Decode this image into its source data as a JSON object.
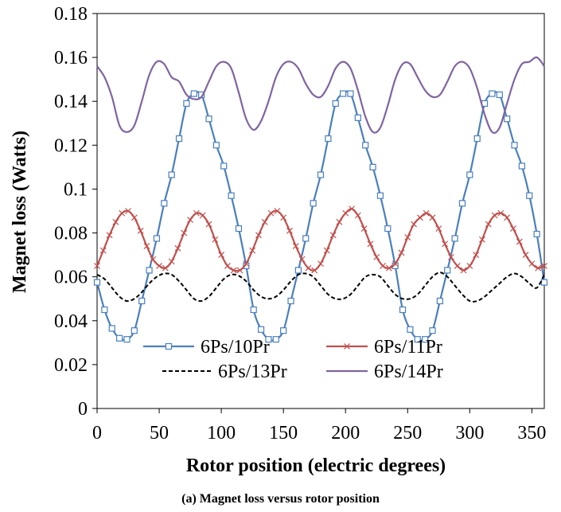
{
  "caption": "(a) Magnet loss versus rotor position",
  "chart_data": {
    "type": "line",
    "title": "",
    "xlabel": "Rotor position (electric degrees)",
    "ylabel": "Magnet loss (Watts)",
    "xlim": [
      0,
      360
    ],
    "ylim": [
      0,
      0.18
    ],
    "xticks": [
      "0",
      "50",
      "100",
      "150",
      "200",
      "250",
      "300",
      "350"
    ],
    "yticks": [
      "0",
      "0.02",
      "0.04",
      "0.06",
      "0.08",
      "0.1",
      "0.12",
      "0.14",
      "0.16",
      "0.18"
    ],
    "grid": false,
    "legend_position": "bottom-inside",
    "series": [
      {
        "name": "6Ps/10Pr",
        "color": "#4a7fbd",
        "marker": "square",
        "dash": "solid",
        "x": [
          0,
          6,
          12,
          18,
          24,
          30,
          36,
          42,
          48,
          54,
          60,
          66,
          72,
          78,
          84,
          90,
          96,
          102,
          108,
          114,
          120,
          126,
          132,
          138,
          144,
          150,
          156,
          162,
          168,
          174,
          180,
          186,
          192,
          198,
          204,
          210,
          216,
          222,
          228,
          234,
          240,
          246,
          252,
          258,
          264,
          270,
          276,
          282,
          288,
          294,
          300,
          306,
          312,
          318,
          324,
          330,
          336,
          342,
          348,
          354,
          360
        ],
        "y": [
          0.0575,
          0.045,
          0.0365,
          0.032,
          0.0315,
          0.0355,
          0.049,
          0.063,
          0.0775,
          0.0935,
          0.1065,
          0.123,
          0.139,
          0.1435,
          0.143,
          0.132,
          0.12,
          0.1105,
          0.097,
          0.082,
          0.065,
          0.045,
          0.036,
          0.0315,
          0.0315,
          0.0355,
          0.049,
          0.063,
          0.0775,
          0.0935,
          0.1065,
          0.123,
          0.139,
          0.1435,
          0.1435,
          0.1325,
          0.12,
          0.11,
          0.097,
          0.082,
          0.065,
          0.045,
          0.036,
          0.0315,
          0.0315,
          0.0355,
          0.049,
          0.063,
          0.0775,
          0.0935,
          0.1065,
          0.123,
          0.139,
          0.1435,
          0.143,
          0.132,
          0.12,
          0.1105,
          0.097,
          0.0795,
          0.0575
        ]
      },
      {
        "name": "6Ps/11Pr",
        "color": "#c0504d",
        "marker": "x",
        "dash": "solid",
        "x": [
          0,
          5,
          10,
          15,
          20,
          25,
          30,
          35,
          40,
          45,
          50,
          55,
          60,
          65,
          70,
          75,
          80,
          85,
          90,
          95,
          100,
          105,
          110,
          115,
          120,
          125,
          130,
          135,
          140,
          145,
          150,
          155,
          160,
          165,
          170,
          175,
          180,
          185,
          190,
          195,
          200,
          205,
          210,
          215,
          220,
          225,
          230,
          235,
          240,
          245,
          250,
          255,
          260,
          265,
          270,
          275,
          280,
          285,
          290,
          295,
          300,
          305,
          310,
          315,
          320,
          325,
          330,
          335,
          340,
          345,
          350,
          355,
          360
        ],
        "y": [
          0.065,
          0.072,
          0.079,
          0.085,
          0.089,
          0.09,
          0.087,
          0.081,
          0.074,
          0.068,
          0.065,
          0.064,
          0.067,
          0.073,
          0.08,
          0.086,
          0.089,
          0.088,
          0.084,
          0.077,
          0.07,
          0.065,
          0.063,
          0.063,
          0.066,
          0.072,
          0.079,
          0.085,
          0.089,
          0.09,
          0.087,
          0.081,
          0.074,
          0.068,
          0.064,
          0.063,
          0.066,
          0.072,
          0.079,
          0.085,
          0.089,
          0.091,
          0.088,
          0.082,
          0.075,
          0.069,
          0.065,
          0.064,
          0.066,
          0.071,
          0.078,
          0.084,
          0.087,
          0.089,
          0.087,
          0.082,
          0.075,
          0.069,
          0.065,
          0.063,
          0.065,
          0.07,
          0.077,
          0.084,
          0.088,
          0.089,
          0.087,
          0.082,
          0.076,
          0.07,
          0.066,
          0.064,
          0.065
        ]
      },
      {
        "name": "6Ps/13Pr",
        "color": "#000000",
        "marker": "none",
        "dash": "dash",
        "x": [
          0,
          6,
          12,
          18,
          24,
          30,
          36,
          42,
          48,
          54,
          60,
          66,
          72,
          78,
          84,
          90,
          96,
          102,
          108,
          114,
          120,
          126,
          132,
          138,
          144,
          150,
          156,
          162,
          168,
          174,
          180,
          186,
          192,
          198,
          204,
          210,
          216,
          222,
          228,
          234,
          240,
          246,
          252,
          258,
          264,
          270,
          276,
          282,
          288,
          294,
          300,
          306,
          312,
          318,
          324,
          330,
          336,
          342,
          348,
          354,
          360
        ],
        "y": [
          0.061,
          0.059,
          0.055,
          0.051,
          0.049,
          0.05,
          0.053,
          0.057,
          0.06,
          0.0615,
          0.061,
          0.058,
          0.054,
          0.05,
          0.049,
          0.051,
          0.055,
          0.059,
          0.061,
          0.0605,
          0.058,
          0.054,
          0.051,
          0.05,
          0.051,
          0.054,
          0.058,
          0.061,
          0.0615,
          0.06,
          0.056,
          0.052,
          0.05,
          0.05,
          0.052,
          0.056,
          0.06,
          0.061,
          0.06,
          0.056,
          0.052,
          0.05,
          0.05,
          0.052,
          0.056,
          0.06,
          0.062,
          0.06,
          0.056,
          0.052,
          0.049,
          0.049,
          0.051,
          0.054,
          0.057,
          0.06,
          0.0615,
          0.06,
          0.057,
          0.055,
          0.061
        ]
      },
      {
        "name": "6Ps/14Pr",
        "color": "#8064a2",
        "marker": "none",
        "dash": "solid",
        "x": [
          0,
          6,
          12,
          18,
          24,
          30,
          36,
          42,
          48,
          54,
          60,
          66,
          72,
          78,
          84,
          90,
          96,
          102,
          108,
          114,
          120,
          126,
          132,
          138,
          144,
          150,
          156,
          162,
          168,
          174,
          180,
          186,
          192,
          198,
          204,
          210,
          216,
          222,
          228,
          234,
          240,
          246,
          252,
          258,
          264,
          270,
          276,
          282,
          288,
          294,
          300,
          306,
          312,
          318,
          324,
          330,
          336,
          342,
          348,
          354,
          360
        ],
        "y": [
          0.156,
          0.151,
          0.142,
          0.129,
          0.126,
          0.129,
          0.14,
          0.152,
          0.158,
          0.157,
          0.151,
          0.149,
          0.143,
          0.141,
          0.142,
          0.149,
          0.156,
          0.158,
          0.155,
          0.144,
          0.132,
          0.127,
          0.131,
          0.14,
          0.151,
          0.157,
          0.158,
          0.155,
          0.148,
          0.143,
          0.142,
          0.147,
          0.155,
          0.158,
          0.155,
          0.145,
          0.133,
          0.126,
          0.128,
          0.138,
          0.15,
          0.157,
          0.157,
          0.151,
          0.145,
          0.142,
          0.143,
          0.149,
          0.156,
          0.158,
          0.155,
          0.146,
          0.134,
          0.126,
          0.128,
          0.139,
          0.15,
          0.157,
          0.158,
          0.16,
          0.156
        ]
      }
    ]
  }
}
